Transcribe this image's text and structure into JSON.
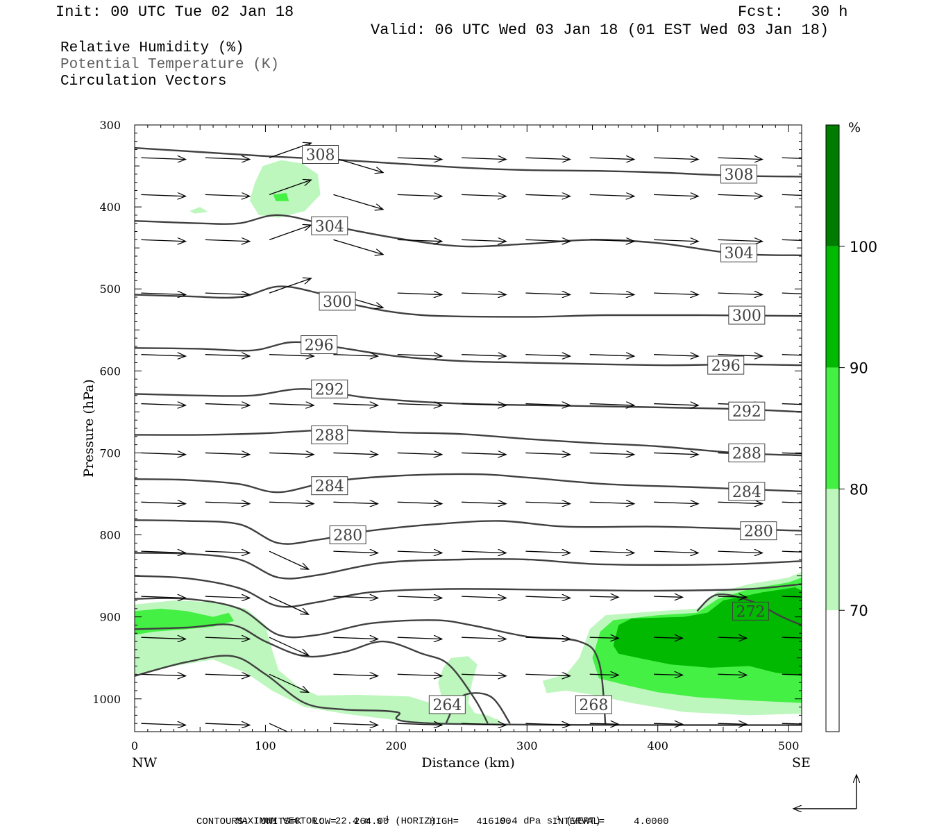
{
  "header": {
    "init": "Init: 00 UTC Tue 02 Jan 18",
    "fcst": "Fcst:   30 h",
    "valid": "Valid: 06 UTC Wed 03 Jan 18 (01 EST Wed 03 Jan 18)"
  },
  "legend_text": {
    "line1": "Relative Humidity (%)",
    "line2": "Potential Temperature (K)",
    "line3": "Circulation Vectors"
  },
  "footer": {
    "max_vector": "MAXIMUM VECTOR:  22.4 m s",
    "max_vector_sup": "-1",
    "max_vector_horiz": " (HORIZ)",
    "max_vector_vert": "19.4 dPa s",
    "max_vector_vert_sup": "-1",
    "max_vector_vert_tail": " (VERT)",
    "contours": "CONTOURS:  UNITS=K  LOW=   264.00       HIGH=   416.00       INTERVAL=     4.0000"
  },
  "colors": {
    "rh70": "#bdf7bd",
    "rh80": "#45f045",
    "rh90": "#00b900",
    "rh100": "#007c00",
    "theta_line": "#404040",
    "vector": "#000000"
  },
  "chart_data": {
    "type": "cross-section",
    "xlabel": "Distance (km)",
    "ylabel": "Pressure (hPa)",
    "xlim": [
      0,
      510
    ],
    "ylim": [
      300,
      1040
    ],
    "x_ticks": [
      0,
      100,
      200,
      300,
      400,
      500
    ],
    "y_ticks": [
      300,
      400,
      500,
      600,
      700,
      800,
      900,
      1000
    ],
    "x_end_labels": [
      "NW",
      "SE"
    ],
    "colorbar": {
      "unit": "%",
      "levels": [
        70,
        80,
        90,
        100
      ],
      "colors": [
        "#ffffff",
        "#bdf7bd",
        "#45f045",
        "#00b900",
        "#007c00"
      ]
    },
    "theta_contours": [
      {
        "value": 308,
        "label_pos": [
          [
            142,
            336
          ],
          [
            462,
            360
          ]
        ],
        "points": [
          [
            0,
            328
          ],
          [
            50,
            333
          ],
          [
            100,
            338
          ],
          [
            150,
            342
          ],
          [
            190,
            346
          ],
          [
            250,
            352
          ],
          [
            300,
            355
          ],
          [
            350,
            356
          ],
          [
            400,
            358
          ],
          [
            460,
            362
          ],
          [
            510,
            363
          ]
        ]
      },
      {
        "value": 304,
        "label_pos": [
          [
            149,
            423
          ],
          [
            462,
            456
          ]
        ],
        "points": [
          [
            0,
            417
          ],
          [
            50,
            420
          ],
          [
            80,
            420
          ],
          [
            110,
            410
          ],
          [
            150,
            423
          ],
          [
            200,
            438
          ],
          [
            250,
            448
          ],
          [
            300,
            445
          ],
          [
            350,
            440
          ],
          [
            400,
            444
          ],
          [
            460,
            457
          ],
          [
            510,
            459
          ]
        ]
      },
      {
        "value": 300,
        "label_pos": [
          [
            155,
            515
          ],
          [
            468,
            532
          ]
        ],
        "points": [
          [
            0,
            507
          ],
          [
            40,
            509
          ],
          [
            80,
            510
          ],
          [
            110,
            497
          ],
          [
            140,
            505
          ],
          [
            170,
            520
          ],
          [
            220,
            532
          ],
          [
            300,
            534
          ],
          [
            360,
            532
          ],
          [
            430,
            532
          ],
          [
            510,
            533
          ]
        ]
      },
      {
        "value": 296,
        "label_pos": [
          [
            141,
            568
          ],
          [
            452,
            593
          ]
        ],
        "points": [
          [
            0,
            572
          ],
          [
            50,
            573
          ],
          [
            90,
            575
          ],
          [
            120,
            565
          ],
          [
            150,
            570
          ],
          [
            200,
            582
          ],
          [
            250,
            588
          ],
          [
            300,
            590
          ],
          [
            400,
            593
          ],
          [
            460,
            592
          ],
          [
            510,
            593
          ]
        ]
      },
      {
        "value": 292,
        "label_pos": [
          [
            149,
            622
          ],
          [
            468,
            649
          ]
        ],
        "points": [
          [
            0,
            628
          ],
          [
            50,
            630
          ],
          [
            90,
            630
          ],
          [
            130,
            622
          ],
          [
            180,
            633
          ],
          [
            250,
            640
          ],
          [
            350,
            643
          ],
          [
            450,
            646
          ],
          [
            510,
            650
          ]
        ]
      },
      {
        "value": 288,
        "label_pos": [
          [
            149,
            678
          ],
          [
            468,
            700
          ]
        ],
        "points": [
          [
            0,
            678
          ],
          [
            50,
            678
          ],
          [
            100,
            676
          ],
          [
            150,
            672
          ],
          [
            200,
            675
          ],
          [
            250,
            677
          ],
          [
            300,
            683
          ],
          [
            350,
            688
          ],
          [
            400,
            692
          ],
          [
            460,
            700
          ],
          [
            510,
            703
          ]
        ]
      },
      {
        "value": 284,
        "label_pos": [
          [
            149,
            740
          ],
          [
            468,
            747
          ]
        ],
        "points": [
          [
            0,
            732
          ],
          [
            40,
            733
          ],
          [
            80,
            738
          ],
          [
            110,
            748
          ],
          [
            150,
            735
          ],
          [
            200,
            728
          ],
          [
            260,
            726
          ],
          [
            300,
            730
          ],
          [
            360,
            738
          ],
          [
            430,
            742
          ],
          [
            510,
            747
          ]
        ]
      },
      {
        "value": 280,
        "label_pos": [
          [
            163,
            800
          ],
          [
            477,
            795
          ]
        ],
        "points": [
          [
            0,
            782
          ],
          [
            40,
            783
          ],
          [
            80,
            787
          ],
          [
            110,
            810
          ],
          [
            140,
            806
          ],
          [
            180,
            795
          ],
          [
            230,
            787
          ],
          [
            280,
            783
          ],
          [
            330,
            790
          ],
          [
            400,
            790
          ],
          [
            470,
            793
          ],
          [
            510,
            795
          ]
        ]
      },
      {
        "value": 276,
        "label_pos": [],
        "points": [
          [
            0,
            822
          ],
          [
            40,
            823
          ],
          [
            80,
            830
          ],
          [
            110,
            852
          ],
          [
            140,
            849
          ],
          [
            190,
            834
          ],
          [
            250,
            830
          ],
          [
            300,
            830
          ],
          [
            360,
            836
          ],
          [
            450,
            836
          ],
          [
            510,
            832
          ]
        ]
      },
      {
        "value": 274,
        "label_pos": [],
        "points": [
          [
            0,
            850
          ],
          [
            40,
            853
          ],
          [
            80,
            865
          ],
          [
            110,
            887
          ],
          [
            140,
            882
          ],
          [
            180,
            870
          ],
          [
            240,
            866
          ],
          [
            320,
            867
          ],
          [
            400,
            868
          ],
          [
            470,
            866
          ],
          [
            510,
            860
          ]
        ]
      },
      {
        "value": 272,
        "label_pos": [
          [
            471,
            893
          ]
        ],
        "points": [
          [
            0,
            878
          ],
          [
            40,
            878
          ],
          [
            80,
            890
          ],
          [
            110,
            922
          ],
          [
            140,
            922
          ],
          [
            180,
            908
          ],
          [
            230,
            904
          ],
          [
            260,
            911
          ],
          [
            300,
            924
          ],
          [
            340,
            930
          ],
          [
            355,
            955
          ],
          [
            360,
            1032
          ]
        ]
      },
      {
        "value": 272,
        "label_pos": [],
        "points": [
          [
            430,
            893
          ],
          [
            445,
            873
          ],
          [
            470,
            880
          ],
          [
            495,
            900
          ],
          [
            510,
            910
          ]
        ]
      },
      {
        "value": 268,
        "label_pos": [
          [
            351,
            1007
          ]
        ],
        "points": [
          [
            0,
            915
          ],
          [
            40,
            913
          ],
          [
            75,
            910
          ],
          [
            100,
            930
          ],
          [
            130,
            948
          ],
          [
            160,
            943
          ],
          [
            190,
            930
          ],
          [
            220,
            945
          ],
          [
            240,
            958
          ],
          [
            260,
            1000
          ],
          [
            270,
            1030
          ]
        ]
      },
      {
        "value": 264,
        "label_pos": [
          [
            239,
            1007
          ]
        ],
        "points": [
          [
            0,
            972
          ],
          [
            40,
            955
          ],
          [
            75,
            948
          ],
          [
            100,
            970
          ],
          [
            130,
            1005
          ],
          [
            160,
            1013
          ],
          [
            200,
            1016
          ],
          [
            230,
            1030
          ],
          [
            510,
            1032
          ]
        ]
      },
      {
        "value": 264,
        "label_pos": [],
        "points": [
          [
            238,
            1030
          ],
          [
            250,
            997
          ],
          [
            272,
            997
          ],
          [
            287,
            1030
          ]
        ]
      }
    ],
    "vectors_note": "circulation vectors (horizontal + vertical components), approximate"
  }
}
